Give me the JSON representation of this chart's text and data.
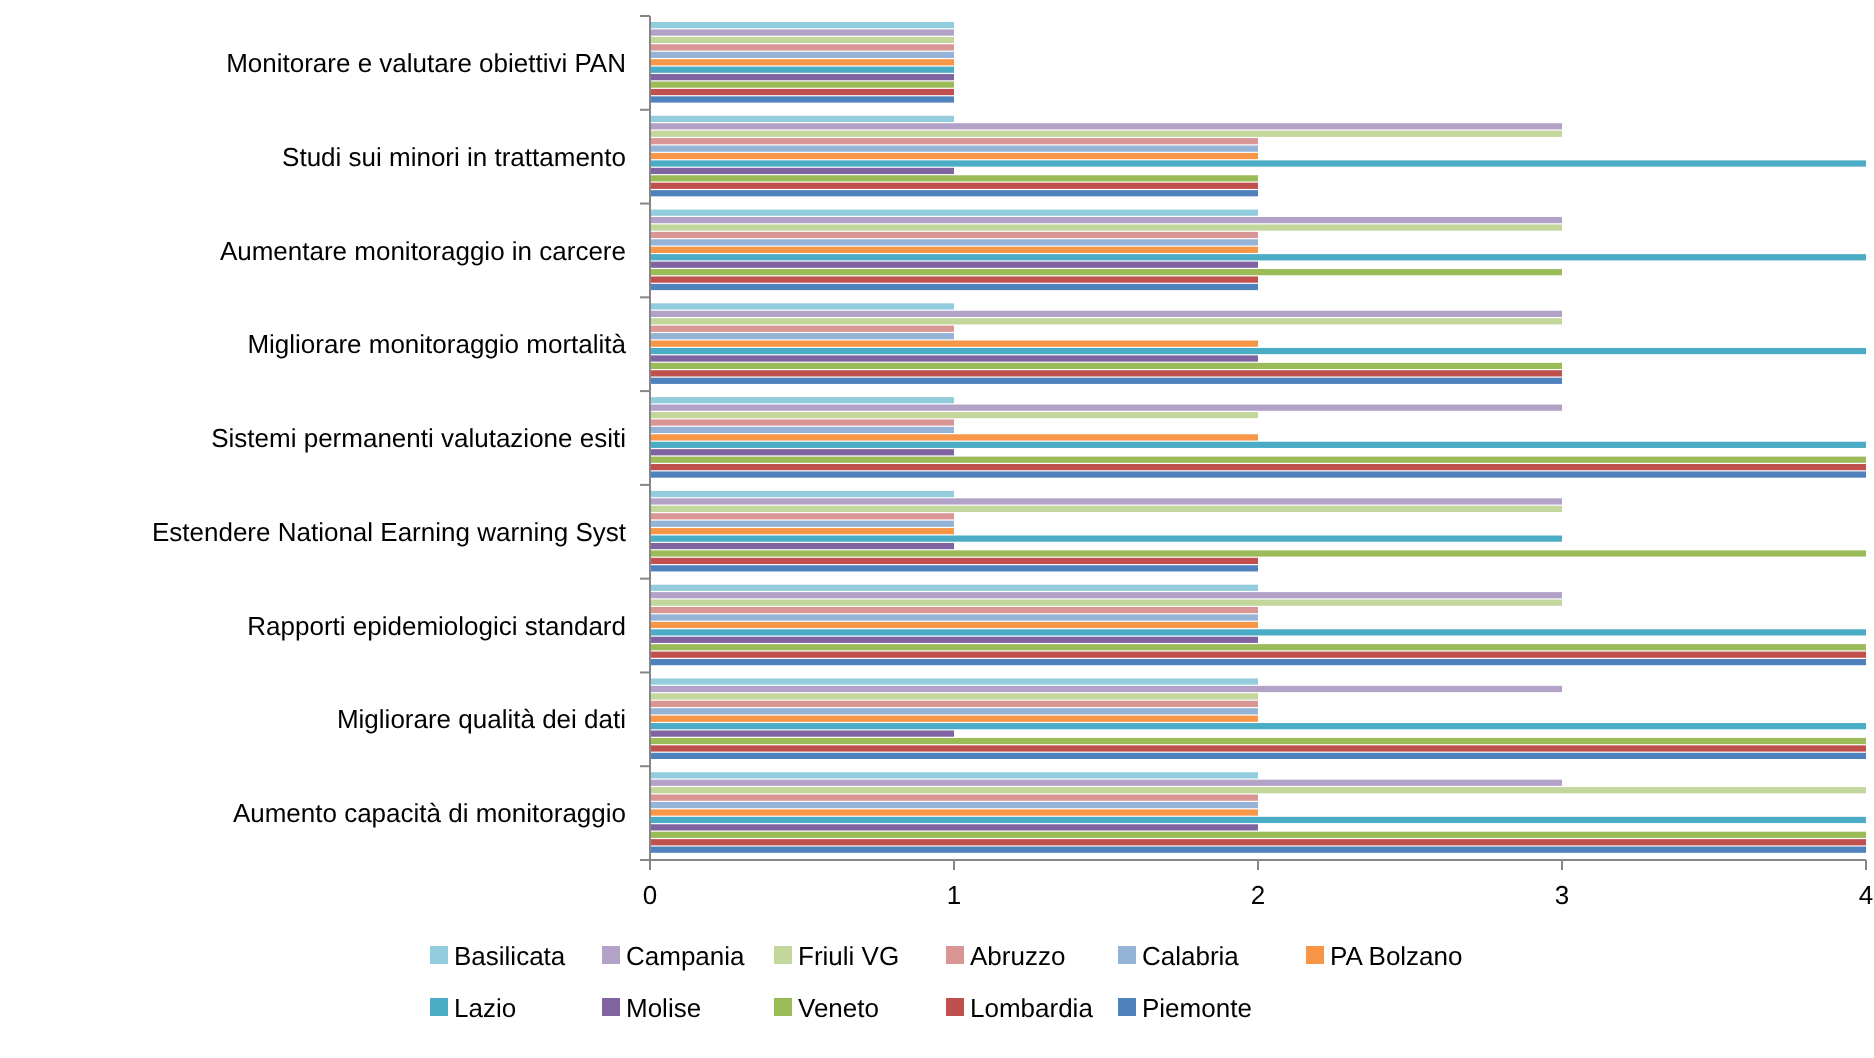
{
  "chart_data": {
    "type": "bar",
    "orientation": "horizontal",
    "categories": [
      "Monitorare e valutare obiettivi PAN",
      "Studi sui minori in trattamento",
      "Aumentare monitoraggio in carcere",
      "Migliorare monitoraggio mortalità",
      "Sistemi permanenti valutazione esiti",
      "Estendere National Earning warning Syst",
      "Rapporti epidemiologici standard",
      "Migliorare qualità dei dati",
      "Aumento capacità di monitoraggio"
    ],
    "series": [
      {
        "name": "Basilicata",
        "color": "#93cddd",
        "values": [
          1,
          1,
          2,
          1,
          1,
          1,
          2,
          2,
          2
        ]
      },
      {
        "name": "Campania",
        "color": "#b3a2c7",
        "values": [
          1,
          3,
          3,
          3,
          3,
          3,
          3,
          3,
          3
        ]
      },
      {
        "name": "Friuli VG",
        "color": "#c3d69b",
        "values": [
          1,
          3,
          3,
          3,
          2,
          3,
          3,
          2,
          4
        ]
      },
      {
        "name": "Abruzzo",
        "color": "#d99694",
        "values": [
          1,
          2,
          2,
          1,
          1,
          1,
          2,
          2,
          2
        ]
      },
      {
        "name": "Calabria",
        "color": "#95b3d7",
        "values": [
          1,
          2,
          2,
          1,
          1,
          1,
          2,
          2,
          2
        ]
      },
      {
        "name": "PA Bolzano",
        "color": "#f79646",
        "values": [
          1,
          2,
          2,
          2,
          2,
          1,
          2,
          2,
          2
        ]
      },
      {
        "name": "Lazio",
        "color": "#4bacc6",
        "values": [
          1,
          4,
          4,
          4,
          4,
          3,
          4,
          4,
          4
        ]
      },
      {
        "name": "Molise",
        "color": "#8064a2",
        "values": [
          1,
          1,
          2,
          2,
          1,
          1,
          2,
          1,
          2
        ]
      },
      {
        "name": "Veneto",
        "color": "#9bbb59",
        "values": [
          1,
          2,
          3,
          3,
          4,
          4,
          4,
          4,
          4
        ]
      },
      {
        "name": "Lombardia",
        "color": "#c0504d",
        "values": [
          1,
          2,
          2,
          3,
          4,
          2,
          4,
          4,
          4
        ]
      },
      {
        "name": "Piemonte",
        "color": "#4f81bd",
        "values": [
          1,
          2,
          2,
          3,
          4,
          2,
          4,
          4,
          4
        ]
      }
    ],
    "xlim": [
      0,
      4
    ],
    "xticks": [
      0,
      1,
      2,
      3,
      4
    ],
    "grid": false,
    "legend": "bottom"
  }
}
